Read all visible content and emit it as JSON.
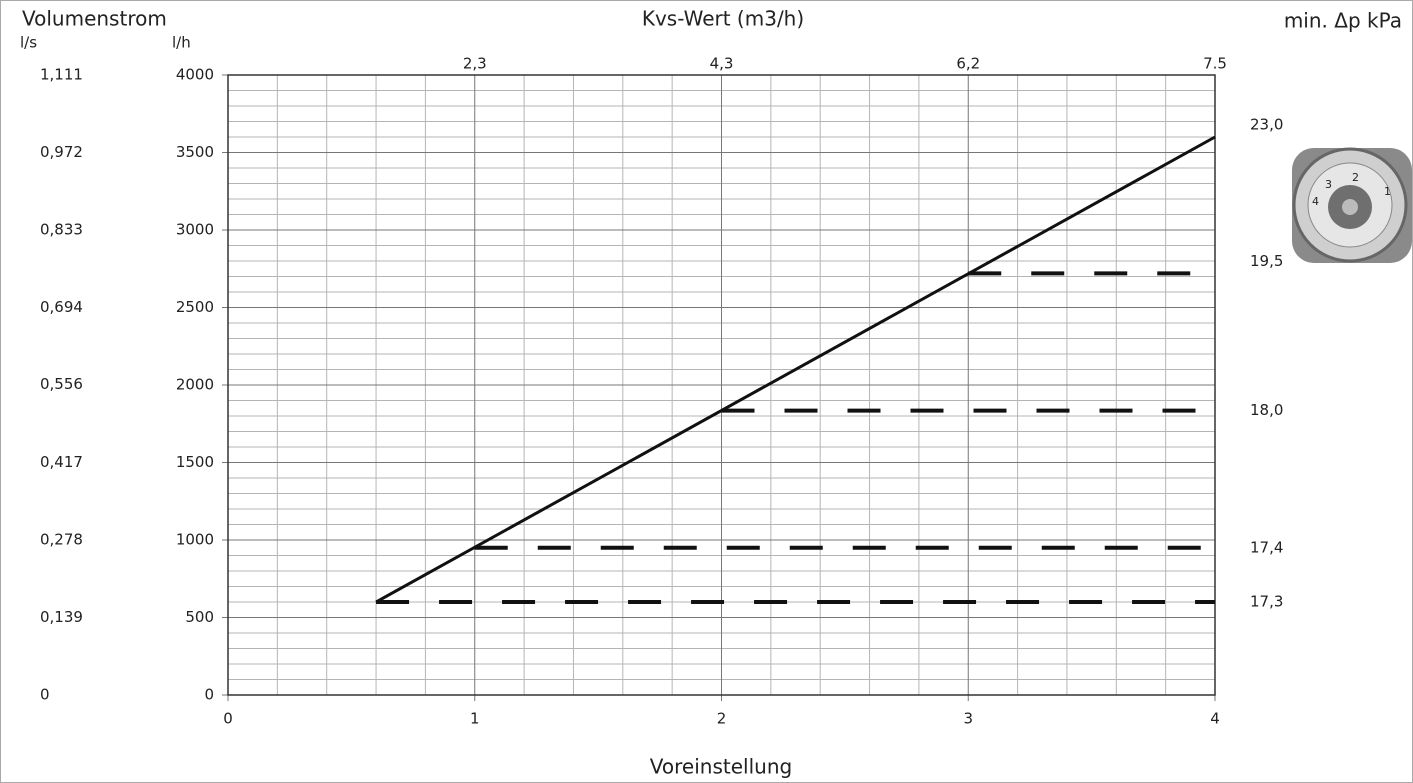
{
  "chart_data": {
    "type": "line",
    "y_title": "Volumenstrom",
    "y2_unit": "l/s",
    "y_unit": "l/h",
    "x_title": "Voreinstellung",
    "top_title": "Kvs-Wert (m3/h)",
    "right_title": "min. Δp kPa",
    "xlim": [
      0,
      4
    ],
    "xticks": [
      0,
      1,
      2,
      3,
      4
    ],
    "ylim": [
      0,
      4000
    ],
    "yticks": [
      0,
      500,
      1000,
      1500,
      2000,
      2500,
      3000,
      3500,
      4000
    ],
    "y2lim": [
      0,
      1.111
    ],
    "y2ticks": [
      0,
      {
        "value": 0.139,
        "label": "0,139"
      },
      {
        "value": 0.278,
        "label": "0,278"
      },
      {
        "value": 0.417,
        "label": "0,417"
      },
      {
        "value": 0.556,
        "label": "0,556"
      },
      {
        "value": 0.694,
        "label": "0,694"
      },
      {
        "value": 0.833,
        "label": "0,833"
      },
      {
        "value": 0.972,
        "label": "0,972"
      },
      {
        "value": 1.111,
        "label": "1,111"
      }
    ],
    "xminor": [
      0.2,
      0.4,
      0.6,
      0.8,
      1.2,
      1.4,
      1.6,
      1.8,
      2.2,
      2.4,
      2.6,
      2.8,
      3.2,
      3.4,
      3.6,
      3.8
    ],
    "yminor": [
      100,
      200,
      300,
      400,
      600,
      700,
      800,
      900,
      1100,
      1200,
      1300,
      1400,
      1600,
      1700,
      1800,
      1900,
      2100,
      2200,
      2300,
      2400,
      2600,
      2700,
      2800,
      2900,
      3100,
      3200,
      3300,
      3400,
      3600,
      3700,
      3800,
      3900
    ],
    "kvs_labels": [
      "2,3",
      "4,3",
      "6,2",
      "7.5"
    ],
    "grid": true,
    "series": [
      {
        "color": "#111111",
        "dashed": false,
        "x": [
          0.6,
          4
        ],
        "values": [
          600,
          3600
        ],
        "dp": "23,0"
      },
      {
        "color": "#111111",
        "dashed": true,
        "x": [
          3,
          4
        ],
        "values": [
          2720,
          2720
        ],
        "dp": "19,5"
      },
      {
        "color": "#111111",
        "dashed": true,
        "x": [
          2,
          4
        ],
        "values": [
          1835,
          1835
        ],
        "dp": "18,0"
      },
      {
        "color": "#111111",
        "dashed": true,
        "x": [
          1,
          4
        ],
        "values": [
          950,
          950
        ],
        "dp": "17,4"
      },
      {
        "color": "#111111",
        "dashed": true,
        "x": [
          0.6,
          4
        ],
        "values": [
          600,
          600
        ],
        "dp": "17,3"
      }
    ],
    "knob_labels": [
      "1",
      "2",
      "3",
      "4"
    ]
  }
}
